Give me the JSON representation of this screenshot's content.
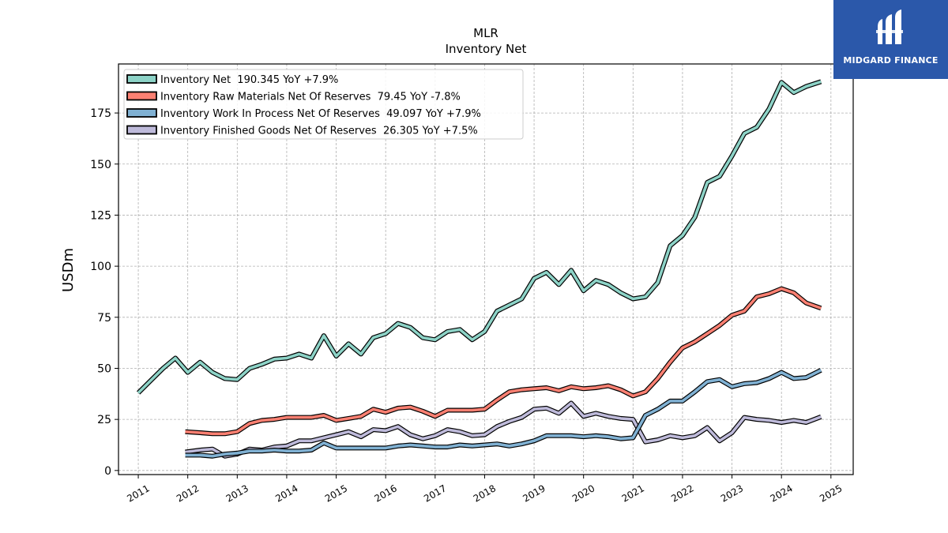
{
  "chart_data": {
    "type": "line",
    "title": "MLR",
    "subtitle": "Inventory Net",
    "xlabel": "",
    "ylabel": "USDm",
    "xlim": [
      2010.6,
      2025.45
    ],
    "ylim": [
      -2,
      199
    ],
    "yticks": [
      0,
      25,
      50,
      75,
      100,
      125,
      150,
      175
    ],
    "xticks": [
      "2011",
      "2012",
      "2013",
      "2014",
      "2015",
      "2016",
      "2017",
      "2018",
      "2019",
      "2020",
      "2021",
      "2022",
      "2023",
      "2024",
      "2025"
    ],
    "grid": true,
    "legend_position": "top-left",
    "series": [
      {
        "name": "Inventory Net",
        "legend": "Inventory Net  190.345 YoY +7.9%",
        "color": "#8dd3c7",
        "points": [
          [
            2011.0,
            38
          ],
          [
            2011.25,
            44
          ],
          [
            2011.5,
            50
          ],
          [
            2011.75,
            55
          ],
          [
            2012.0,
            48
          ],
          [
            2012.25,
            53
          ],
          [
            2012.5,
            48
          ],
          [
            2012.75,
            45
          ],
          [
            2013.0,
            44.5
          ],
          [
            2013.25,
            50
          ],
          [
            2013.5,
            52
          ],
          [
            2013.75,
            54.5
          ],
          [
            2014.0,
            55
          ],
          [
            2014.25,
            57
          ],
          [
            2014.5,
            55
          ],
          [
            2014.75,
            66
          ],
          [
            2015.0,
            56
          ],
          [
            2015.25,
            62
          ],
          [
            2015.5,
            57
          ],
          [
            2015.75,
            65
          ],
          [
            2016.0,
            67
          ],
          [
            2016.25,
            72
          ],
          [
            2016.5,
            70
          ],
          [
            2016.75,
            65
          ],
          [
            2017.0,
            64
          ],
          [
            2017.25,
            68
          ],
          [
            2017.5,
            69
          ],
          [
            2017.75,
            64
          ],
          [
            2018.0,
            68
          ],
          [
            2018.25,
            78
          ],
          [
            2018.5,
            81
          ],
          [
            2018.75,
            84
          ],
          [
            2019.0,
            94
          ],
          [
            2019.25,
            97
          ],
          [
            2019.5,
            91
          ],
          [
            2019.75,
            98
          ],
          [
            2020.0,
            88
          ],
          [
            2020.25,
            93
          ],
          [
            2020.5,
            91
          ],
          [
            2020.75,
            87
          ],
          [
            2021.0,
            84
          ],
          [
            2021.25,
            85
          ],
          [
            2021.5,
            92
          ],
          [
            2021.75,
            110
          ],
          [
            2022.0,
            115
          ],
          [
            2022.25,
            124
          ],
          [
            2022.5,
            141
          ],
          [
            2022.75,
            144
          ],
          [
            2023.0,
            154
          ],
          [
            2023.25,
            165
          ],
          [
            2023.5,
            168
          ],
          [
            2023.75,
            177
          ],
          [
            2024.0,
            190
          ],
          [
            2024.25,
            185
          ],
          [
            2024.5,
            188
          ],
          [
            2024.8,
            190.345
          ]
        ]
      },
      {
        "name": "Inventory Raw Materials Net Of Reserves",
        "legend": "Inventory Raw Materials Net Of Reserves  79.45 YoY -7.8%",
        "color": "#fb8072",
        "points": [
          [
            2011.95,
            19
          ],
          [
            2012.25,
            18.5
          ],
          [
            2012.5,
            18
          ],
          [
            2012.75,
            18
          ],
          [
            2013.0,
            19
          ],
          [
            2013.25,
            23
          ],
          [
            2013.5,
            24.5
          ],
          [
            2013.75,
            25
          ],
          [
            2014.0,
            26
          ],
          [
            2014.25,
            26
          ],
          [
            2014.5,
            26
          ],
          [
            2014.75,
            27
          ],
          [
            2015.0,
            24.5
          ],
          [
            2015.25,
            25.5
          ],
          [
            2015.5,
            26.5
          ],
          [
            2015.75,
            30
          ],
          [
            2016.0,
            28.5
          ],
          [
            2016.25,
            30.5
          ],
          [
            2016.5,
            31
          ],
          [
            2016.75,
            29
          ],
          [
            2017.0,
            26.5
          ],
          [
            2017.25,
            29.5
          ],
          [
            2017.5,
            29.5
          ],
          [
            2017.75,
            29.5
          ],
          [
            2018.0,
            30
          ],
          [
            2018.25,
            34.5
          ],
          [
            2018.5,
            38.5
          ],
          [
            2018.75,
            39.5
          ],
          [
            2019.0,
            40
          ],
          [
            2019.25,
            40.5
          ],
          [
            2019.5,
            39
          ],
          [
            2019.75,
            41
          ],
          [
            2020.0,
            40
          ],
          [
            2020.25,
            40.5
          ],
          [
            2020.5,
            41.5
          ],
          [
            2020.75,
            39.5
          ],
          [
            2021.0,
            36.5
          ],
          [
            2021.25,
            38.5
          ],
          [
            2021.5,
            45
          ],
          [
            2021.75,
            53
          ],
          [
            2022.0,
            60
          ],
          [
            2022.25,
            63
          ],
          [
            2022.5,
            67
          ],
          [
            2022.75,
            71
          ],
          [
            2023.0,
            76
          ],
          [
            2023.25,
            78
          ],
          [
            2023.5,
            85
          ],
          [
            2023.75,
            86.5
          ],
          [
            2024.0,
            89
          ],
          [
            2024.25,
            87
          ],
          [
            2024.5,
            82
          ],
          [
            2024.8,
            79.45
          ]
        ]
      },
      {
        "name": "Inventory Work In Process Net Of Reserves",
        "legend": "Inventory Work In Process Net Of Reserves  49.097 YoY +7.9%",
        "color": "#80b1d3",
        "points": [
          [
            2011.95,
            7.5
          ],
          [
            2012.25,
            7.5
          ],
          [
            2012.5,
            7
          ],
          [
            2012.75,
            8
          ],
          [
            2013.0,
            8.5
          ],
          [
            2013.25,
            9.5
          ],
          [
            2013.5,
            9.5
          ],
          [
            2013.75,
            10
          ],
          [
            2014.0,
            9.5
          ],
          [
            2014.25,
            9.5
          ],
          [
            2014.5,
            10
          ],
          [
            2014.75,
            13.5
          ],
          [
            2015.0,
            11
          ],
          [
            2015.25,
            11
          ],
          [
            2015.5,
            11
          ],
          [
            2015.75,
            11
          ],
          [
            2016.0,
            11
          ],
          [
            2016.25,
            12
          ],
          [
            2016.5,
            12.5
          ],
          [
            2016.75,
            12
          ],
          [
            2017.0,
            11.5
          ],
          [
            2017.25,
            11.5
          ],
          [
            2017.5,
            12.5
          ],
          [
            2017.75,
            12
          ],
          [
            2018.0,
            12.5
          ],
          [
            2018.25,
            13
          ],
          [
            2018.5,
            12
          ],
          [
            2018.75,
            13
          ],
          [
            2019.0,
            14.5
          ],
          [
            2019.25,
            17
          ],
          [
            2019.5,
            17
          ],
          [
            2019.75,
            17
          ],
          [
            2020.0,
            16.5
          ],
          [
            2020.25,
            17
          ],
          [
            2020.5,
            16.5
          ],
          [
            2020.75,
            15.5
          ],
          [
            2021.0,
            16
          ],
          [
            2021.25,
            27
          ],
          [
            2021.5,
            30
          ],
          [
            2021.75,
            34
          ],
          [
            2022.0,
            34
          ],
          [
            2022.25,
            38.5
          ],
          [
            2022.5,
            43.5
          ],
          [
            2022.75,
            44.5
          ],
          [
            2023.0,
            41
          ],
          [
            2023.25,
            42.5
          ],
          [
            2023.5,
            43
          ],
          [
            2023.75,
            45
          ],
          [
            2024.0,
            48
          ],
          [
            2024.25,
            45
          ],
          [
            2024.5,
            45.5
          ],
          [
            2024.8,
            49.097
          ]
        ]
      },
      {
        "name": "Inventory Finished Goods Net Of Reserves",
        "legend": "Inventory Finished Goods Net Of Reserves  26.305 YoY +7.5%",
        "color": "#bebada",
        "points": [
          [
            2011.95,
            9
          ],
          [
            2012.25,
            10
          ],
          [
            2012.5,
            10.5
          ],
          [
            2012.75,
            7
          ],
          [
            2013.0,
            8
          ],
          [
            2013.25,
            10.5
          ],
          [
            2013.5,
            10
          ],
          [
            2013.75,
            11.5
          ],
          [
            2014.0,
            12
          ],
          [
            2014.25,
            14.5
          ],
          [
            2014.5,
            14.5
          ],
          [
            2014.75,
            16
          ],
          [
            2015.0,
            17.5
          ],
          [
            2015.25,
            19
          ],
          [
            2015.5,
            16.5
          ],
          [
            2015.75,
            20
          ],
          [
            2016.0,
            19.5
          ],
          [
            2016.25,
            21.5
          ],
          [
            2016.5,
            17.5
          ],
          [
            2016.75,
            15.5
          ],
          [
            2017.0,
            17
          ],
          [
            2017.25,
            20
          ],
          [
            2017.5,
            19
          ],
          [
            2017.75,
            17
          ],
          [
            2018.0,
            17.5
          ],
          [
            2018.25,
            21.5
          ],
          [
            2018.5,
            24
          ],
          [
            2018.75,
            26
          ],
          [
            2019.0,
            30
          ],
          [
            2019.25,
            30.5
          ],
          [
            2019.5,
            28
          ],
          [
            2019.75,
            33
          ],
          [
            2020.0,
            26.5
          ],
          [
            2020.25,
            28
          ],
          [
            2020.5,
            26.5
          ],
          [
            2020.75,
            25.5
          ],
          [
            2021.0,
            25
          ],
          [
            2021.25,
            14
          ],
          [
            2021.5,
            15
          ],
          [
            2021.75,
            17
          ],
          [
            2022.0,
            16
          ],
          [
            2022.25,
            17
          ],
          [
            2022.5,
            21
          ],
          [
            2022.75,
            14.5
          ],
          [
            2023.0,
            18.5
          ],
          [
            2023.25,
            26
          ],
          [
            2023.5,
            25
          ],
          [
            2023.75,
            24.5
          ],
          [
            2024.0,
            23.5
          ],
          [
            2024.25,
            24.5
          ],
          [
            2024.5,
            23.5
          ],
          [
            2024.8,
            26.305
          ]
        ]
      }
    ]
  },
  "logo": {
    "text": "MIDGARD FINANCE"
  }
}
